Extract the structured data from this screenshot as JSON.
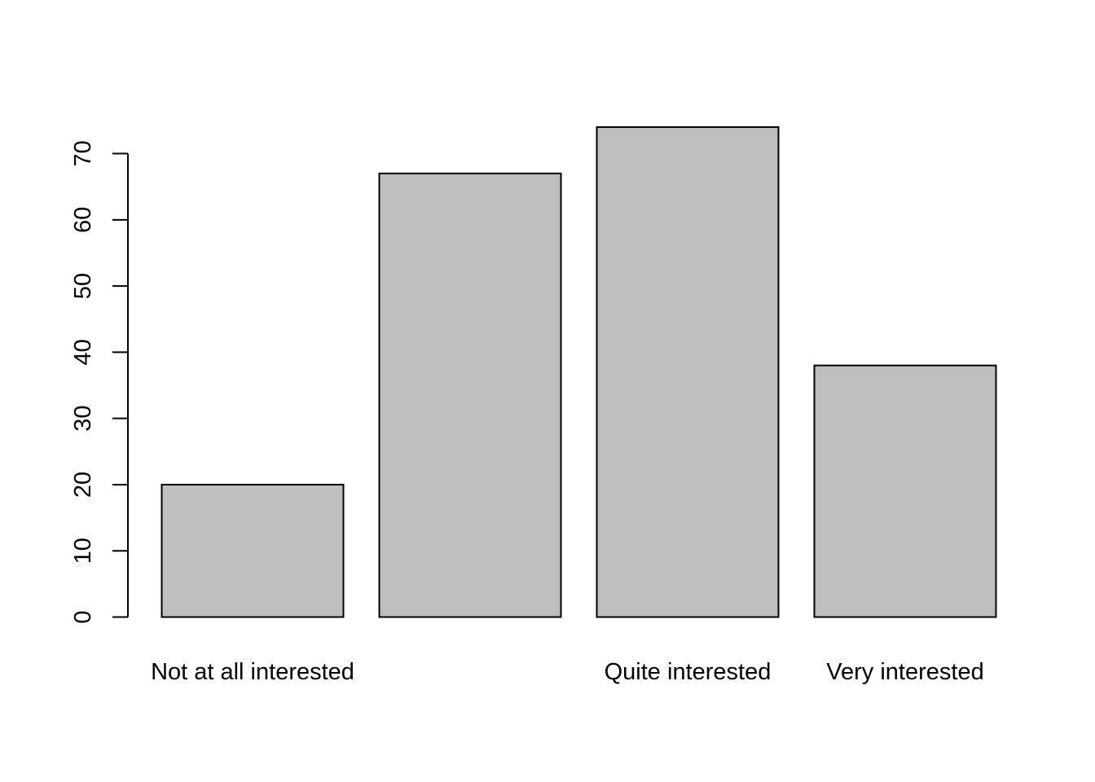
{
  "chart_data": {
    "type": "bar",
    "categories": [
      "Not at all interested",
      "",
      "Quite interested",
      "Very interested"
    ],
    "values": [
      20,
      67,
      74,
      38
    ],
    "title": "",
    "xlabel": "",
    "ylabel": "",
    "ylim": [
      0,
      70
    ],
    "yticks": [
      0,
      10,
      20,
      30,
      40,
      50,
      60,
      70
    ],
    "grid": false,
    "bar_fill": "#bebebe",
    "bar_stroke": "#000000"
  }
}
